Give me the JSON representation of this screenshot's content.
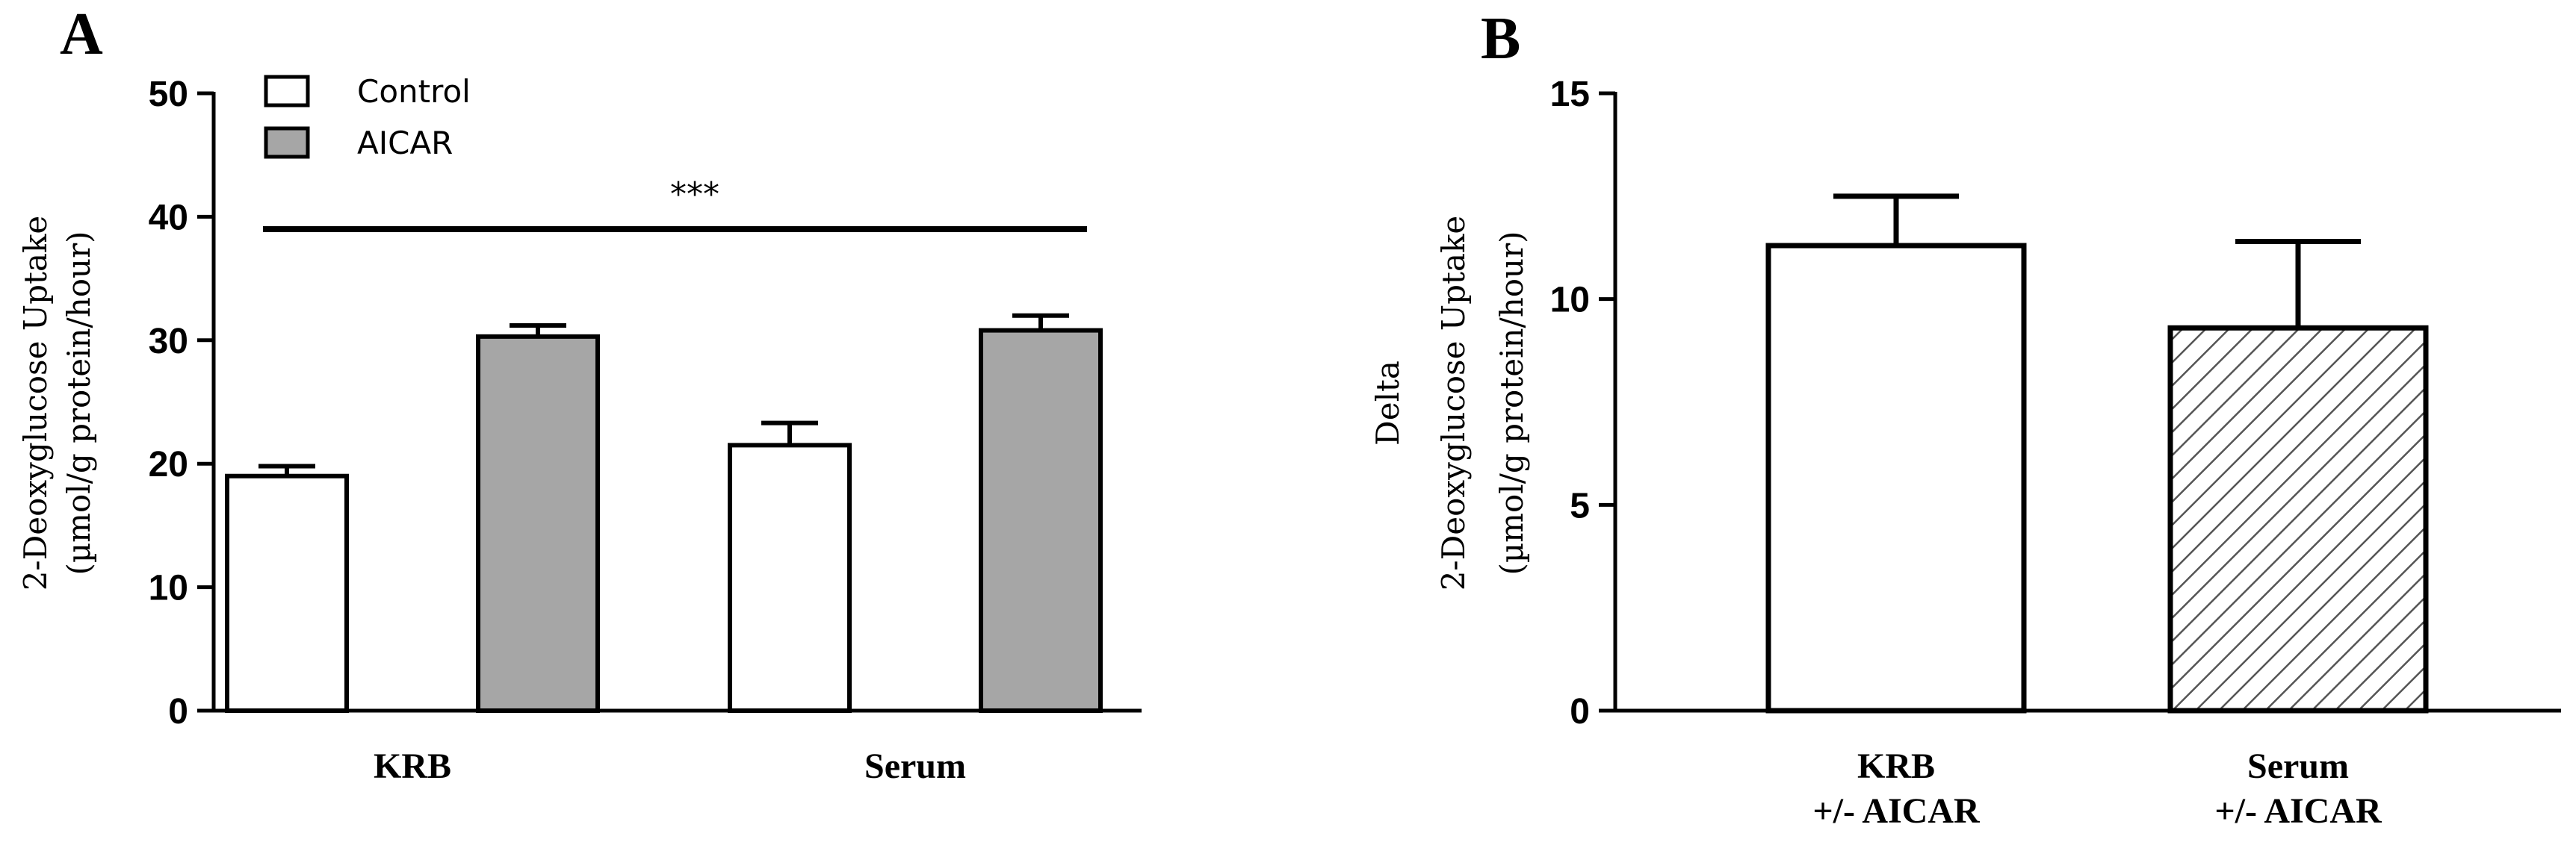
{
  "chart_data": [
    {
      "type": "bar",
      "panel": "A",
      "categories": [
        "KRB",
        "Serum"
      ],
      "series": [
        {
          "name": "Control",
          "values": [
            19.0,
            21.5
          ],
          "errors": [
            0.8,
            1.8
          ],
          "color": "#ffffff"
        },
        {
          "name": "AICAR",
          "values": [
            30.3,
            30.8
          ],
          "errors": [
            0.9,
            1.2
          ],
          "color": "#a6a6a6"
        }
      ],
      "ylabel_lines": [
        "2-Deoxyglucose Uptake",
        "(µmol/g protein/hour)"
      ],
      "ylim": [
        0,
        50
      ],
      "yticks": [
        "0",
        "10",
        "20",
        "30",
        "40",
        "50"
      ],
      "legend_position": "top-left",
      "significance": {
        "label": "***",
        "y": 39
      }
    },
    {
      "type": "bar",
      "panel": "B",
      "categories": [
        [
          "KRB",
          "+/- AICAR"
        ],
        [
          "Serum",
          "+/- AICAR"
        ]
      ],
      "values": [
        11.3,
        9.3
      ],
      "errors": [
        1.2,
        2.1
      ],
      "fills": [
        "white",
        "hatched"
      ],
      "ylabel_lines": [
        "Delta",
        "2-Deoxyglucose Uptake",
        "(µmol/g protein/hour)"
      ],
      "ylim": [
        0,
        15
      ],
      "yticks": [
        "0",
        "5",
        "10",
        "15"
      ]
    }
  ]
}
